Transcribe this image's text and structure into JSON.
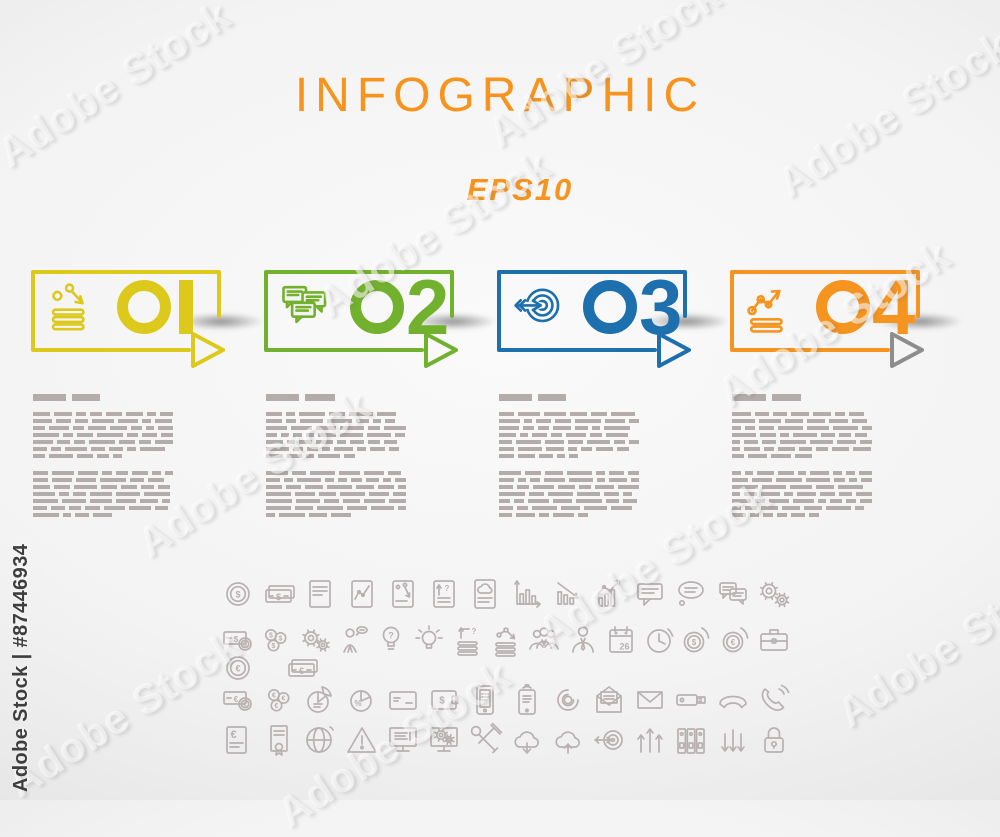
{
  "header": {
    "title": "INFOGRAPHIC",
    "subtitle": "EPS10"
  },
  "watermark": {
    "stock_text": "Adobe Stock",
    "id_text": "Adobe Stock | #87446934"
  },
  "colors": {
    "title_orange": "#f7941e",
    "step_yellow": "#ddc91c",
    "step_green": "#72b12d",
    "step_blue": "#1d6fad",
    "step_orange": "#f5941f",
    "gray_arrow": "#8d8d8d",
    "placeholder_gray": "#b4abab",
    "icon_gray": "#b9b1b1"
  },
  "steps": [
    {
      "label": "01",
      "digit": "1",
      "color": "#ddc91c",
      "arrow_color": "#ddc91c",
      "icon": "scatter-arrow-down-list-icon"
    },
    {
      "label": "02",
      "digit": "2",
      "color": "#72b12d",
      "arrow_color": "#72b12d",
      "icon": "chat-bubbles-icon"
    },
    {
      "label": "03",
      "digit": "3",
      "color": "#1d6fad",
      "arrow_color": "#1d6fad",
      "icon": "target-arrow-icon"
    },
    {
      "label": "04",
      "digit": "4",
      "color": "#f5941f",
      "arrow_color": "#8d8d8d",
      "icon": "scatter-arrow-up-list-icon"
    }
  ],
  "placeholder_columns": [
    {
      "heading_bars": [
        33,
        28
      ],
      "paragraph_line_counts": [
        7,
        7
      ]
    },
    {
      "heading_bars": [
        33,
        30
      ],
      "paragraph_line_counts": [
        7,
        7
      ]
    },
    {
      "heading_bars": [
        33,
        28
      ],
      "paragraph_line_counts": [
        7,
        7
      ]
    },
    {
      "heading_bars": [
        34,
        29
      ],
      "paragraph_line_counts": [
        7,
        7
      ]
    }
  ],
  "icon_sheet": {
    "rows": [
      [
        "coin-dollar",
        "banknotes-dollar",
        "document-text",
        "clipboard-chart",
        "clipboard-scatter",
        "clipboard-arrows",
        "tablet-cloud",
        "chart-axes",
        "chart-declining",
        "chart-rising",
        "speech-bubble-lines",
        "speech-ellipse",
        "chat-bubbles",
        "gears-pair"
      ],
      [
        "banknote-coin-dollar",
        "coins-dollar",
        "gears-small",
        "person-speech",
        "bulb-question",
        "bulb-idea",
        "arrows-lines",
        "scatter-lines",
        "people-group",
        "person-tie",
        "calendar-26",
        "clock",
        "coin-dollar-arc",
        "coin-euro-arc",
        "briefcase"
      ],
      [
        "banknote-coin-euro",
        "coins-euro",
        "pie-chart",
        "pie-percent",
        "credit-card",
        "wallet-dollar",
        "smartphone-text",
        "tablet-wifi",
        "spiral-target",
        "envelope-open",
        "envelope-closed",
        "usb-drive",
        "phone-handset",
        "phone-receiver"
      ],
      [
        "document-euro",
        "certificate",
        "globe",
        "warning-triangle",
        "monitor-text",
        "monitor-gears",
        "repair-tools",
        "cloud-download",
        "cloud-upload",
        "target-arrow-small",
        "arrows-up",
        "binders",
        "arrows-down",
        "padlock"
      ]
    ],
    "left_extra_row": [
      "coin-euro",
      "banknotes-euro"
    ],
    "calendar_day": "26"
  }
}
